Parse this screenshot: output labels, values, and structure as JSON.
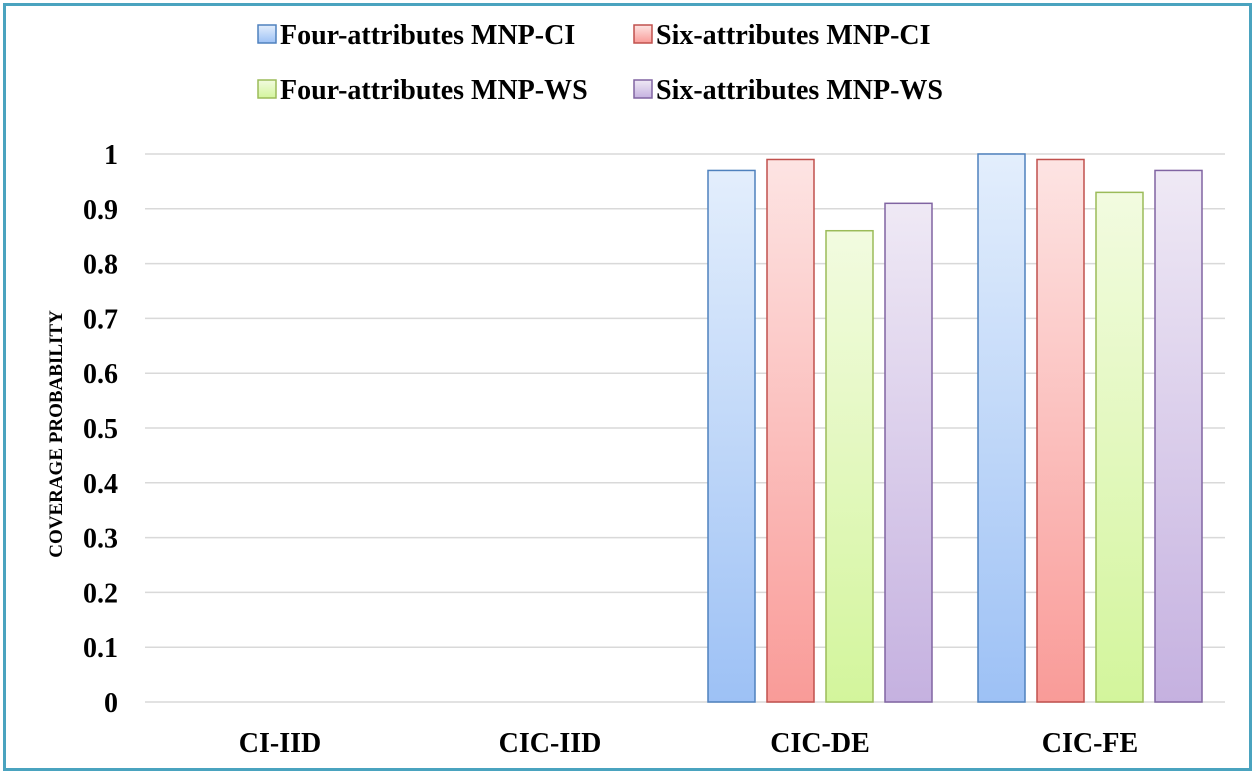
{
  "chart_data": {
    "type": "bar",
    "title": "",
    "xlabel": "",
    "ylabel": "COVERAGE PROBABILITY",
    "categories": [
      "CI-IID",
      "CIC-IID",
      "CIC-DE",
      "CIC-FE"
    ],
    "ylim": [
      0,
      1
    ],
    "yticks": [
      "0",
      "0.1",
      "0.2",
      "0.3",
      "0.4",
      "0.5",
      "0.6",
      "0.7",
      "0.8",
      "0.9",
      "1"
    ],
    "grid": true,
    "legend_position": "top",
    "series": [
      {
        "name": "Four-attributes MNP-CI",
        "values": [
          null,
          null,
          0.97,
          1.0
        ],
        "color_light": "#e3eefc",
        "color_dark": "#9dc1f5",
        "stroke": "#4f81bd"
      },
      {
        "name": "Six-attributes MNP-CI",
        "values": [
          null,
          null,
          0.99,
          0.99
        ],
        "color_light": "#fde4e3",
        "color_dark": "#f99b98",
        "stroke": "#c0504d"
      },
      {
        "name": "Four-attributes MNP-WS",
        "values": [
          null,
          null,
          0.86,
          0.93
        ],
        "color_light": "#f2fbe0",
        "color_dark": "#d3f59c",
        "stroke": "#9bbb59"
      },
      {
        "name": "Six-attributes MNP-WS",
        "values": [
          null,
          null,
          0.91,
          0.97
        ],
        "color_light": "#efe9f5",
        "color_dark": "#c5b1e0",
        "stroke": "#8064a2"
      }
    ]
  }
}
